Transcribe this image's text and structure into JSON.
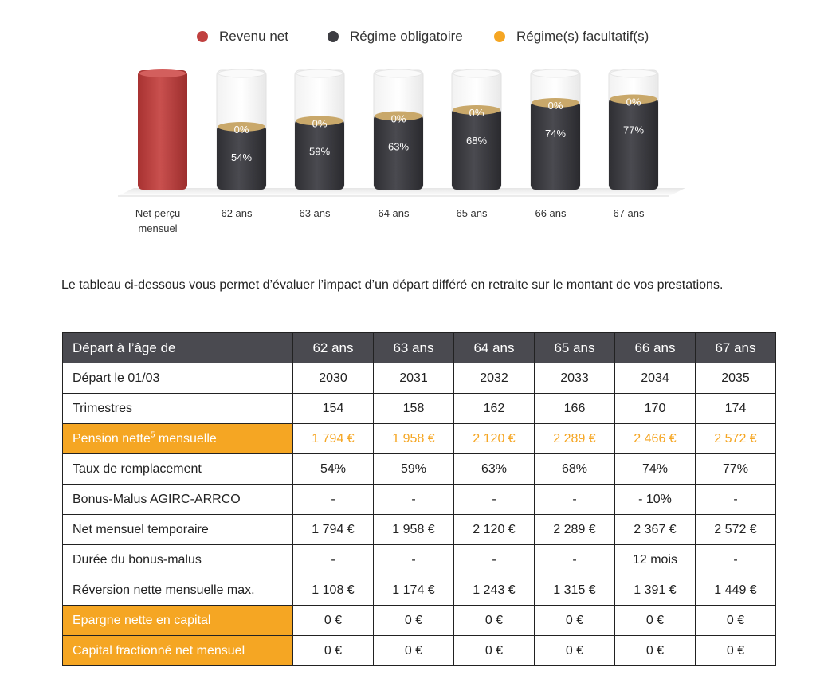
{
  "legend": [
    {
      "label": "Revenu net",
      "color": "#c0403f"
    },
    {
      "label": "Régime obligatoire",
      "color": "#3d3d42"
    },
    {
      "label": "Régime(s) facultatif(s)",
      "color": "#f5a623"
    }
  ],
  "chart_data": {
    "type": "bar",
    "categories": [
      "Net perçu mensuel",
      "62 ans",
      "63 ans",
      "64 ans",
      "65 ans",
      "66 ans",
      "67 ans"
    ],
    "series": [
      {
        "name": "Revenu net",
        "values": [
          100,
          null,
          null,
          null,
          null,
          null,
          null
        ],
        "color": "#c0403f"
      },
      {
        "name": "Régime obligatoire",
        "values": [
          null,
          54,
          59,
          63,
          68,
          74,
          77
        ],
        "labels": [
          "",
          "54%",
          "59%",
          "63%",
          "68%",
          "74%",
          "77%"
        ],
        "color": "#3d3d42"
      },
      {
        "name": "Régime(s) facultatif(s)",
        "values": [
          null,
          0,
          0,
          0,
          0,
          0,
          0
        ],
        "labels": [
          "",
          "0%",
          "0%",
          "0%",
          "0%",
          "0%",
          "0%"
        ],
        "color": "#c9a86a"
      }
    ],
    "ylim": [
      0,
      100
    ]
  },
  "category_labels": [
    {
      "line1": "Net perçu",
      "line2": "mensuel"
    },
    {
      "line1": "62 ans",
      "line2": ""
    },
    {
      "line1": "63 ans",
      "line2": ""
    },
    {
      "line1": "64 ans",
      "line2": ""
    },
    {
      "line1": "65 ans",
      "line2": ""
    },
    {
      "line1": "66 ans",
      "line2": ""
    },
    {
      "line1": "67 ans",
      "line2": ""
    }
  ],
  "intro": "Le tableau ci-dessous vous permet d’évaluer l’impact d’un départ différé en retraite sur le montant de vos prestations.",
  "table": {
    "header": [
      "Départ à l’âge de",
      "62 ans",
      "63 ans",
      "64 ans",
      "65 ans",
      "66 ans",
      "67 ans"
    ],
    "rows": [
      {
        "label": "Départ le 01/03",
        "values": [
          "2030",
          "2031",
          "2032",
          "2033",
          "2034",
          "2035"
        ]
      },
      {
        "label": "Trimestres",
        "values": [
          "154",
          "158",
          "162",
          "166",
          "170",
          "174"
        ]
      },
      {
        "label": "Pension nette",
        "label_sup": "5",
        "label_after": " mensuelle",
        "highlight": true,
        "values": [
          "1 794 €",
          "1 958 €",
          "2 120 €",
          "2 289 €",
          "2 466 €",
          "2 572 €"
        ]
      },
      {
        "label": "Taux de remplacement",
        "values": [
          "54%",
          "59%",
          "63%",
          "68%",
          "74%",
          "77%"
        ]
      },
      {
        "label": "Bonus-Malus AGIRC-ARRCO",
        "values": [
          "-",
          "-",
          "-",
          "-",
          "- 10%",
          "-"
        ]
      },
      {
        "label": "Net mensuel temporaire",
        "values": [
          "1 794 €",
          "1 958 €",
          "2 120 €",
          "2 289 €",
          "2 367 €",
          "2 572 €"
        ]
      },
      {
        "label": "Durée du bonus-malus",
        "values": [
          "-",
          "-",
          "-",
          "-",
          "12 mois",
          "-"
        ]
      },
      {
        "label": "Réversion nette mensuelle max.",
        "values": [
          "1 108 €",
          "1 174 €",
          "1 243 €",
          "1 315 €",
          "1 391 €",
          "1 449 €"
        ]
      },
      {
        "label": "Epargne nette en capital",
        "highlight_label": true,
        "values": [
          "0 €",
          "0 €",
          "0 €",
          "0 €",
          "0 €",
          "0 €"
        ]
      },
      {
        "label": "Capital fractionné net mensuel",
        "highlight_label": true,
        "values": [
          "0 €",
          "0 €",
          "0 €",
          "0 €",
          "0 €",
          "0 €"
        ]
      }
    ]
  }
}
